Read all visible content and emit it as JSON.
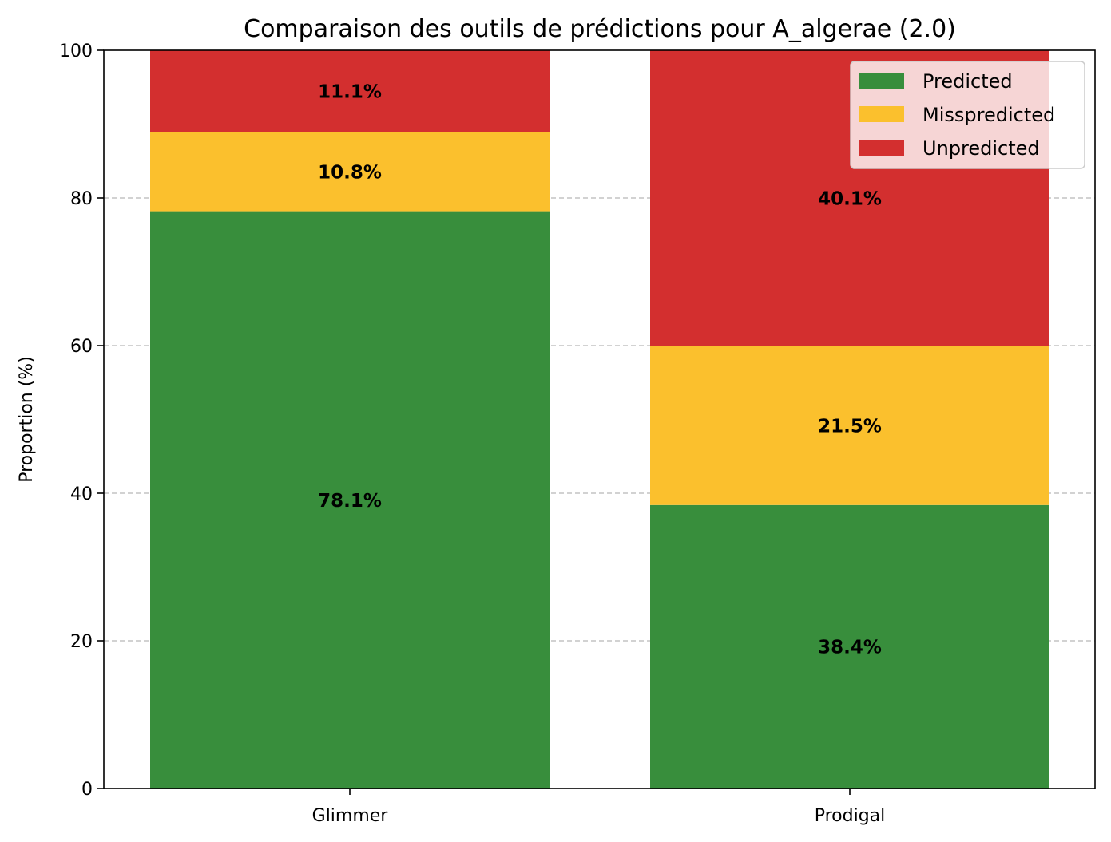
{
  "chart_data": {
    "type": "bar",
    "stacked": true,
    "title": "Comparaison des outils de prédictions pour A_algerae (2.0)",
    "xlabel": "",
    "ylabel": "Proportion (%)",
    "ylim": [
      0,
      100
    ],
    "yticks": [
      0,
      20,
      40,
      60,
      80,
      100
    ],
    "grid": "y-dashed",
    "legend_position": "top-right",
    "categories": [
      "Glimmer",
      "Prodigal"
    ],
    "series": [
      {
        "name": "Predicted",
        "color": "#388e3c",
        "values": [
          78.1,
          38.4
        ],
        "labels": [
          "78.1%",
          "38.4%"
        ]
      },
      {
        "name": "Misspredicted",
        "color": "#fbc02d",
        "values": [
          10.8,
          21.5
        ],
        "labels": [
          "10.8%",
          "21.5%"
        ]
      },
      {
        "name": "Unpredicted",
        "color": "#d32f2f",
        "values": [
          11.1,
          40.1
        ],
        "labels": [
          "11.1%",
          "40.1%"
        ]
      }
    ]
  }
}
